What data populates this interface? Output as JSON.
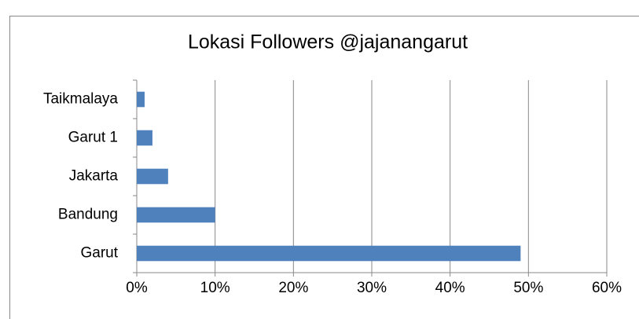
{
  "chart_data": {
    "type": "bar",
    "orientation": "horizontal",
    "title": "Lokasi Followers @jajanangarut",
    "categories": [
      "Garut",
      "Bandung",
      "Jakarta",
      "Garut 1",
      "Taikmalaya"
    ],
    "values": [
      49,
      10,
      4,
      2,
      1
    ],
    "color": "#4f81bd",
    "xlim": [
      0,
      60
    ],
    "xticks": [
      {
        "value": 0,
        "label": "0%"
      },
      {
        "value": 10,
        "label": "10%"
      },
      {
        "value": 20,
        "label": "20%"
      },
      {
        "value": 30,
        "label": "30%"
      },
      {
        "value": 40,
        "label": "40%"
      },
      {
        "value": 50,
        "label": "50%"
      },
      {
        "value": 60,
        "label": "60%"
      }
    ],
    "grid": true
  }
}
